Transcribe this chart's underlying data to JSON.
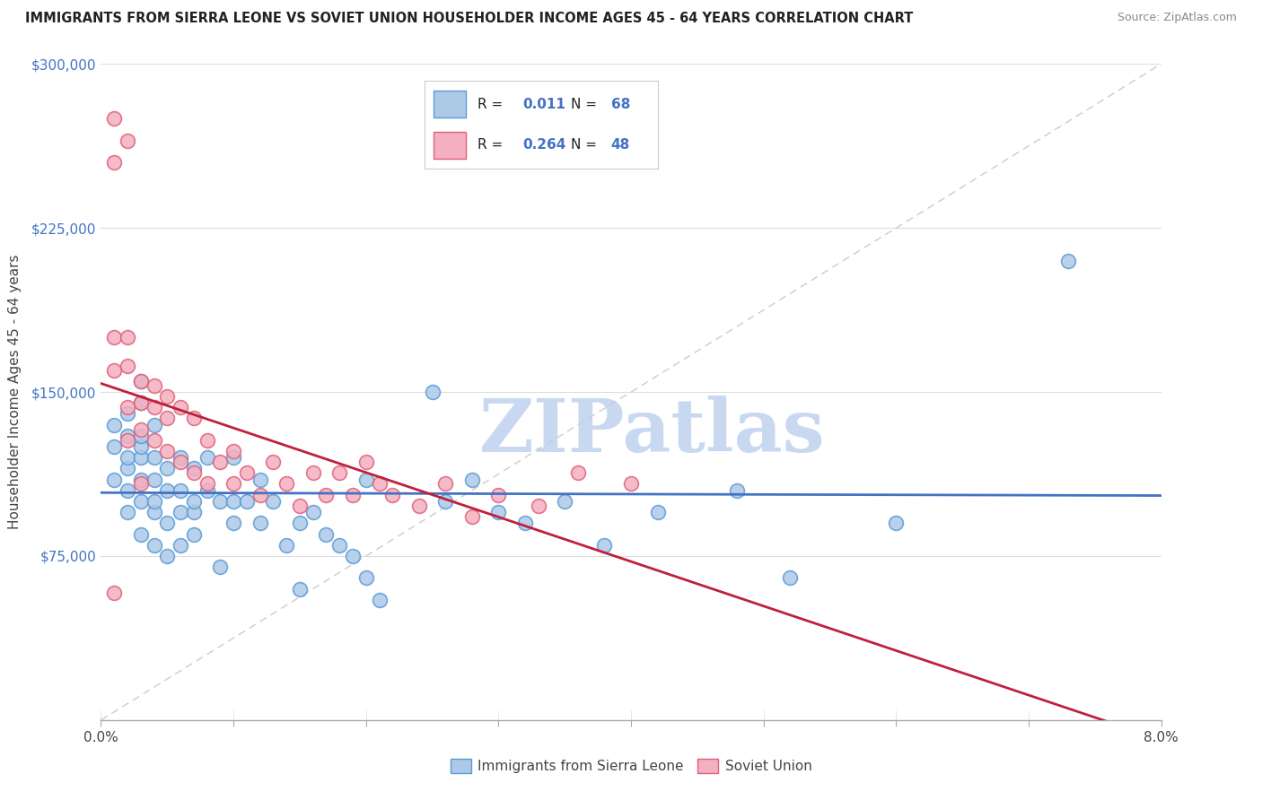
{
  "title": "IMMIGRANTS FROM SIERRA LEONE VS SOVIET UNION HOUSEHOLDER INCOME AGES 45 - 64 YEARS CORRELATION CHART",
  "source": "Source: ZipAtlas.com",
  "ylabel": "Householder Income Ages 45 - 64 years",
  "xmin": 0.0,
  "xmax": 0.08,
  "ymin": 0,
  "ymax": 300000,
  "yticks": [
    0,
    75000,
    150000,
    225000,
    300000
  ],
  "ytick_labels": [
    "",
    "$75,000",
    "$150,000",
    "$225,000",
    "$300,000"
  ],
  "xtick_positions": [
    0.0,
    0.01,
    0.02,
    0.03,
    0.04,
    0.05,
    0.06,
    0.07,
    0.08
  ],
  "xtick_labels": [
    "0.0%",
    "",
    "",
    "",
    "",
    "",
    "",
    "",
    "8.0%"
  ],
  "legend_r1": "0.011",
  "legend_n1": "68",
  "legend_r2": "0.264",
  "legend_n2": "48",
  "color_sierra_fill": "#adc9e8",
  "color_sierra_edge": "#5b9bd5",
  "color_soviet_fill": "#f4afc0",
  "color_soviet_edge": "#e0607a",
  "color_line_sierra": "#4472c4",
  "color_line_soviet": "#c0203a",
  "color_diag_line": "#cccccc",
  "color_ytick": "#4472c4",
  "watermark_text": "ZIPatlas",
  "watermark_color": "#c8d8f0",
  "sierra_leone_x": [
    0.001,
    0.001,
    0.001,
    0.002,
    0.002,
    0.002,
    0.002,
    0.002,
    0.002,
    0.003,
    0.003,
    0.003,
    0.003,
    0.003,
    0.003,
    0.003,
    0.004,
    0.004,
    0.004,
    0.004,
    0.004,
    0.004,
    0.005,
    0.005,
    0.005,
    0.005,
    0.006,
    0.006,
    0.006,
    0.006,
    0.007,
    0.007,
    0.007,
    0.007,
    0.008,
    0.008,
    0.009,
    0.009,
    0.01,
    0.01,
    0.01,
    0.011,
    0.012,
    0.012,
    0.013,
    0.014,
    0.015,
    0.015,
    0.016,
    0.017,
    0.018,
    0.019,
    0.02,
    0.02,
    0.021,
    0.025,
    0.026,
    0.028,
    0.03,
    0.032,
    0.035,
    0.038,
    0.042,
    0.048,
    0.052,
    0.06,
    0.073,
    0.003
  ],
  "sierra_leone_y": [
    110000,
    125000,
    135000,
    95000,
    105000,
    115000,
    120000,
    130000,
    140000,
    85000,
    100000,
    110000,
    120000,
    125000,
    130000,
    145000,
    80000,
    95000,
    100000,
    110000,
    120000,
    135000,
    75000,
    90000,
    105000,
    115000,
    80000,
    95000,
    105000,
    120000,
    85000,
    95000,
    100000,
    115000,
    105000,
    120000,
    70000,
    100000,
    90000,
    100000,
    120000,
    100000,
    90000,
    110000,
    100000,
    80000,
    60000,
    90000,
    95000,
    85000,
    80000,
    75000,
    110000,
    65000,
    55000,
    150000,
    100000,
    110000,
    95000,
    90000,
    100000,
    80000,
    95000,
    105000,
    65000,
    90000,
    210000,
    155000
  ],
  "soviet_union_x": [
    0.001,
    0.001,
    0.001,
    0.001,
    0.001,
    0.002,
    0.002,
    0.002,
    0.002,
    0.002,
    0.003,
    0.003,
    0.003,
    0.003,
    0.004,
    0.004,
    0.004,
    0.005,
    0.005,
    0.005,
    0.006,
    0.006,
    0.007,
    0.007,
    0.008,
    0.008,
    0.009,
    0.01,
    0.01,
    0.011,
    0.012,
    0.013,
    0.014,
    0.015,
    0.016,
    0.017,
    0.018,
    0.019,
    0.02,
    0.021,
    0.022,
    0.024,
    0.026,
    0.028,
    0.03,
    0.033,
    0.036,
    0.04
  ],
  "soviet_union_y": [
    275000,
    255000,
    175000,
    160000,
    58000,
    265000,
    175000,
    162000,
    143000,
    128000,
    155000,
    145000,
    133000,
    108000,
    153000,
    143000,
    128000,
    148000,
    138000,
    123000,
    143000,
    118000,
    138000,
    113000,
    128000,
    108000,
    118000,
    123000,
    108000,
    113000,
    103000,
    118000,
    108000,
    98000,
    113000,
    103000,
    113000,
    103000,
    118000,
    108000,
    103000,
    98000,
    108000,
    93000,
    103000,
    98000,
    113000,
    108000
  ]
}
